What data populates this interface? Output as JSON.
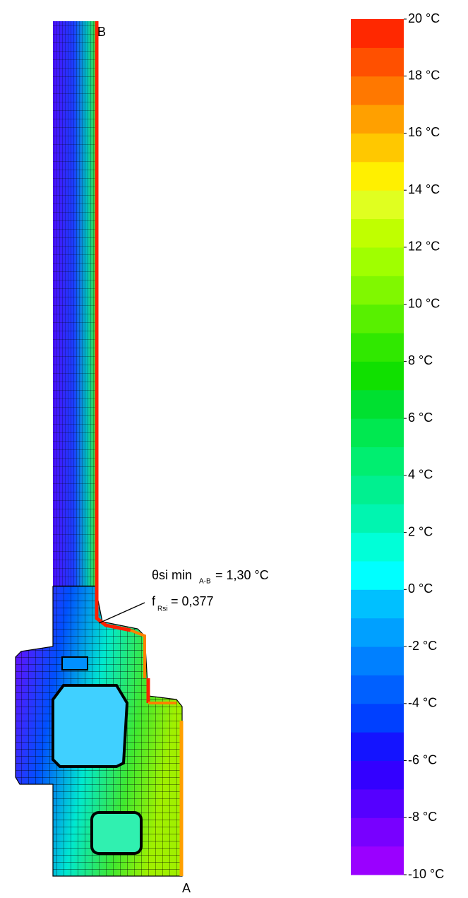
{
  "chart_data": {
    "type": "thermal",
    "colorbar": {
      "lim": [
        -10,
        20
      ],
      "levels": [
        -10,
        -9,
        -8,
        -7,
        -6,
        -5,
        -4,
        -3,
        -2,
        -1,
        0,
        1,
        2,
        3,
        4,
        5,
        6,
        7,
        8,
        9,
        10,
        11,
        12,
        13,
        14,
        15,
        16,
        17,
        18,
        19,
        20
      ],
      "colors": [
        "#9a00ff",
        "#7800ff",
        "#5500ff",
        "#3300ff",
        "#1414ff",
        "#0040ff",
        "#0060ff",
        "#0080ff",
        "#00a0ff",
        "#00c0ff",
        "#00ffff",
        "#00ffd8",
        "#00f5b0",
        "#00f090",
        "#00ee70",
        "#00e850",
        "#00e030",
        "#10e000",
        "#30e800",
        "#58f000",
        "#80f800",
        "#a0ff00",
        "#c0ff00",
        "#e0ff20",
        "#fff000",
        "#ffc800",
        "#ffa000",
        "#ff7800",
        "#ff5000",
        "#ff2800"
      ],
      "ticks": [
        {
          "value": -10,
          "label": "-10 °C"
        },
        {
          "value": -8,
          "label": "-8 °C"
        },
        {
          "value": -6,
          "label": "-6 °C"
        },
        {
          "value": -4,
          "label": "-4 °C"
        },
        {
          "value": -2,
          "label": "-2 °C"
        },
        {
          "value": 0,
          "label": "0 °C"
        },
        {
          "value": 2,
          "label": "2 °C"
        },
        {
          "value": 4,
          "label": "4 °C"
        },
        {
          "value": 6,
          "label": "6 °C"
        },
        {
          "value": 8,
          "label": "8 °C"
        },
        {
          "value": 10,
          "label": "10 °C"
        },
        {
          "value": 12,
          "label": "12 °C"
        },
        {
          "value": 14,
          "label": "14 °C"
        },
        {
          "value": 16,
          "label": "16 °C"
        },
        {
          "value": 18,
          "label": "18 °C"
        },
        {
          "value": 20,
          "label": "20 °C"
        }
      ]
    },
    "annotations": {
      "point_a": "A",
      "point_b": "B",
      "theta": "θsi min",
      "theta_sub": "A-B",
      "theta_value": "= 1,30 °C",
      "f": "f",
      "f_sub": "Rsi",
      "f_value": "= 0,377"
    }
  }
}
